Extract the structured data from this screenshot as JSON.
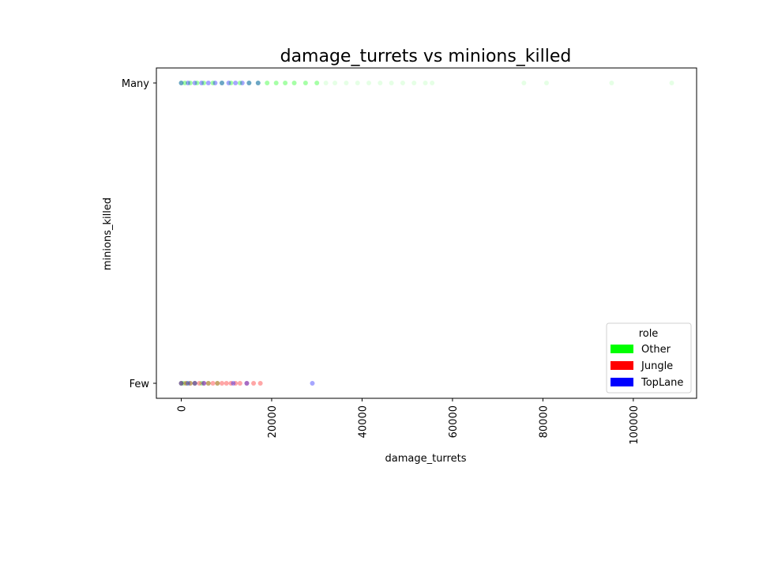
{
  "chart_data": {
    "type": "scatter",
    "title": "damage_turrets vs minions_killed",
    "xlabel": "damage_turrets",
    "ylabel": "minions_killed",
    "xlim": [
      -5500,
      114000
    ],
    "x_ticks": [
      0,
      20000,
      40000,
      60000,
      80000,
      100000
    ],
    "y_categories": [
      "Few",
      "Many"
    ],
    "legend": {
      "title": "role",
      "placement": "lower-right",
      "entries": [
        {
          "label": "Other",
          "color": "#00ff00"
        },
        {
          "label": "Jungle",
          "color": "#ff0000"
        },
        {
          "label": "TopLane",
          "color": "#0000ff"
        }
      ]
    },
    "series": [
      {
        "name": "Other",
        "color": "#00ff00",
        "points": [
          {
            "x": 0,
            "y": "Many"
          },
          {
            "x": 800,
            "y": "Many"
          },
          {
            "x": 2000,
            "y": "Many"
          },
          {
            "x": 3500,
            "y": "Many"
          },
          {
            "x": 5000,
            "y": "Many"
          },
          {
            "x": 7000,
            "y": "Many"
          },
          {
            "x": 9000,
            "y": "Many"
          },
          {
            "x": 11000,
            "y": "Many"
          },
          {
            "x": 13000,
            "y": "Many"
          },
          {
            "x": 15000,
            "y": "Many"
          },
          {
            "x": 17000,
            "y": "Many"
          },
          {
            "x": 19000,
            "y": "Many"
          },
          {
            "x": 21000,
            "y": "Many"
          },
          {
            "x": 23000,
            "y": "Many"
          },
          {
            "x": 25000,
            "y": "Many"
          },
          {
            "x": 27500,
            "y": "Many"
          },
          {
            "x": 30000,
            "y": "Many"
          },
          {
            "x": 32000,
            "y": "Many"
          },
          {
            "x": 34000,
            "y": "Many"
          },
          {
            "x": 36500,
            "y": "Many"
          },
          {
            "x": 39000,
            "y": "Many"
          },
          {
            "x": 41500,
            "y": "Many"
          },
          {
            "x": 44000,
            "y": "Many"
          },
          {
            "x": 46500,
            "y": "Many"
          },
          {
            "x": 49000,
            "y": "Many"
          },
          {
            "x": 51500,
            "y": "Many"
          },
          {
            "x": 54000,
            "y": "Many"
          },
          {
            "x": 55500,
            "y": "Many"
          },
          {
            "x": 75800,
            "y": "Many"
          },
          {
            "x": 80800,
            "y": "Many"
          },
          {
            "x": 95200,
            "y": "Many"
          },
          {
            "x": 108500,
            "y": "Many"
          },
          {
            "x": 0,
            "y": "Few"
          },
          {
            "x": 500,
            "y": "Few"
          },
          {
            "x": 1200,
            "y": "Few"
          },
          {
            "x": 2000,
            "y": "Few"
          },
          {
            "x": 3000,
            "y": "Few"
          },
          {
            "x": 4500,
            "y": "Few"
          },
          {
            "x": 6000,
            "y": "Few"
          },
          {
            "x": 8000,
            "y": "Few"
          }
        ]
      },
      {
        "name": "Jungle",
        "color": "#ff0000",
        "points": [
          {
            "x": 0,
            "y": "Few"
          },
          {
            "x": 1000,
            "y": "Few"
          },
          {
            "x": 2000,
            "y": "Few"
          },
          {
            "x": 3000,
            "y": "Few"
          },
          {
            "x": 4000,
            "y": "Few"
          },
          {
            "x": 5000,
            "y": "Few"
          },
          {
            "x": 6000,
            "y": "Few"
          },
          {
            "x": 7000,
            "y": "Few"
          },
          {
            "x": 8000,
            "y": "Few"
          },
          {
            "x": 9000,
            "y": "Few"
          },
          {
            "x": 10000,
            "y": "Few"
          },
          {
            "x": 11000,
            "y": "Few"
          },
          {
            "x": 12000,
            "y": "Few"
          },
          {
            "x": 13000,
            "y": "Few"
          },
          {
            "x": 14500,
            "y": "Few"
          },
          {
            "x": 16000,
            "y": "Few"
          },
          {
            "x": 17500,
            "y": "Few"
          }
        ]
      },
      {
        "name": "TopLane",
        "color": "#0000ff",
        "points": [
          {
            "x": 0,
            "y": "Many"
          },
          {
            "x": 1500,
            "y": "Many"
          },
          {
            "x": 3000,
            "y": "Many"
          },
          {
            "x": 4500,
            "y": "Many"
          },
          {
            "x": 6000,
            "y": "Many"
          },
          {
            "x": 7500,
            "y": "Many"
          },
          {
            "x": 9000,
            "y": "Many"
          },
          {
            "x": 10500,
            "y": "Many"
          },
          {
            "x": 12000,
            "y": "Many"
          },
          {
            "x": 13500,
            "y": "Many"
          },
          {
            "x": 15000,
            "y": "Many"
          },
          {
            "x": 17000,
            "y": "Many"
          },
          {
            "x": 0,
            "y": "Few"
          },
          {
            "x": 1500,
            "y": "Few"
          },
          {
            "x": 3000,
            "y": "Few"
          },
          {
            "x": 5000,
            "y": "Few"
          },
          {
            "x": 11500,
            "y": "Few"
          },
          {
            "x": 14500,
            "y": "Few"
          },
          {
            "x": 29000,
            "y": "Few"
          }
        ]
      }
    ]
  }
}
